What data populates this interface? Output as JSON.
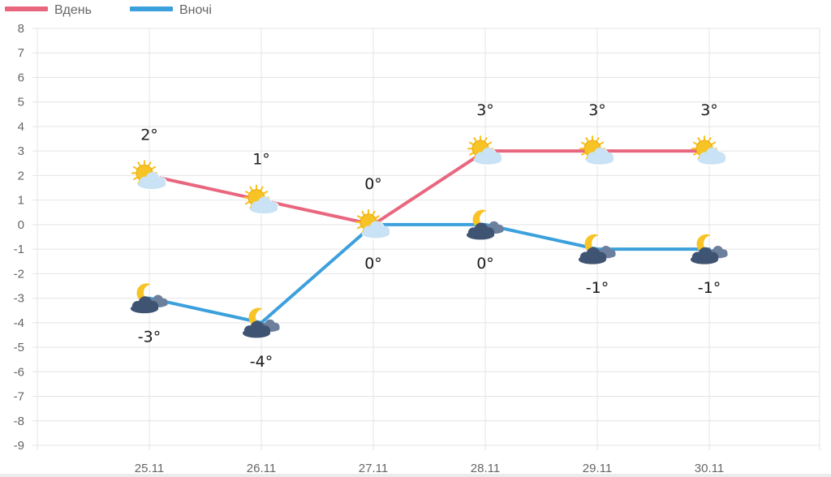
{
  "chart_data": {
    "type": "line",
    "categories": [
      "25.11",
      "26.11",
      "27.11",
      "28.11",
      "29.11",
      "30.11"
    ],
    "series": [
      {
        "name": "Вдень",
        "color": "#e8677f",
        "values": [
          2,
          1,
          0,
          3,
          3,
          3
        ],
        "labels": [
          "2°",
          "1°",
          "0°",
          "3°",
          "3°",
          "3°"
        ],
        "icons": [
          "sun-behind-cloud-icon",
          "sun-behind-cloud-icon",
          "sun-behind-cloud-icon",
          "sun-behind-cloud-icon",
          "sun-behind-cloud-icon",
          "sun-behind-cloud-icon"
        ]
      },
      {
        "name": "Вночі",
        "color": "#3ca0dc",
        "values": [
          -3,
          -4,
          0,
          0,
          -1,
          -1
        ],
        "labels": [
          "-3°",
          "-4°",
          "0°",
          "0°",
          "-1°",
          "-1°"
        ],
        "icons": [
          "moon-cloud-icon",
          "moon-cloud-icon",
          "none",
          "moon-cloud-icon",
          "moon-cloud-icon",
          "moon-cloud-icon"
        ]
      }
    ],
    "ylim": [
      -9,
      8
    ],
    "yticks": [
      "8",
      "7",
      "6",
      "5",
      "4",
      "3",
      "2",
      "1",
      "0",
      "-1",
      "-2",
      "-3",
      "-4",
      "-5",
      "-6",
      "-7",
      "-8",
      "-9"
    ],
    "grid": true,
    "legend": "top-left",
    "colors": {
      "grid": "#e4e4e4",
      "axis_text": "#666666",
      "sun": "#f7c325",
      "day_cloud": "#c9e2f5",
      "night_cloud": "#3f5472",
      "moon": "#f7c325"
    }
  }
}
